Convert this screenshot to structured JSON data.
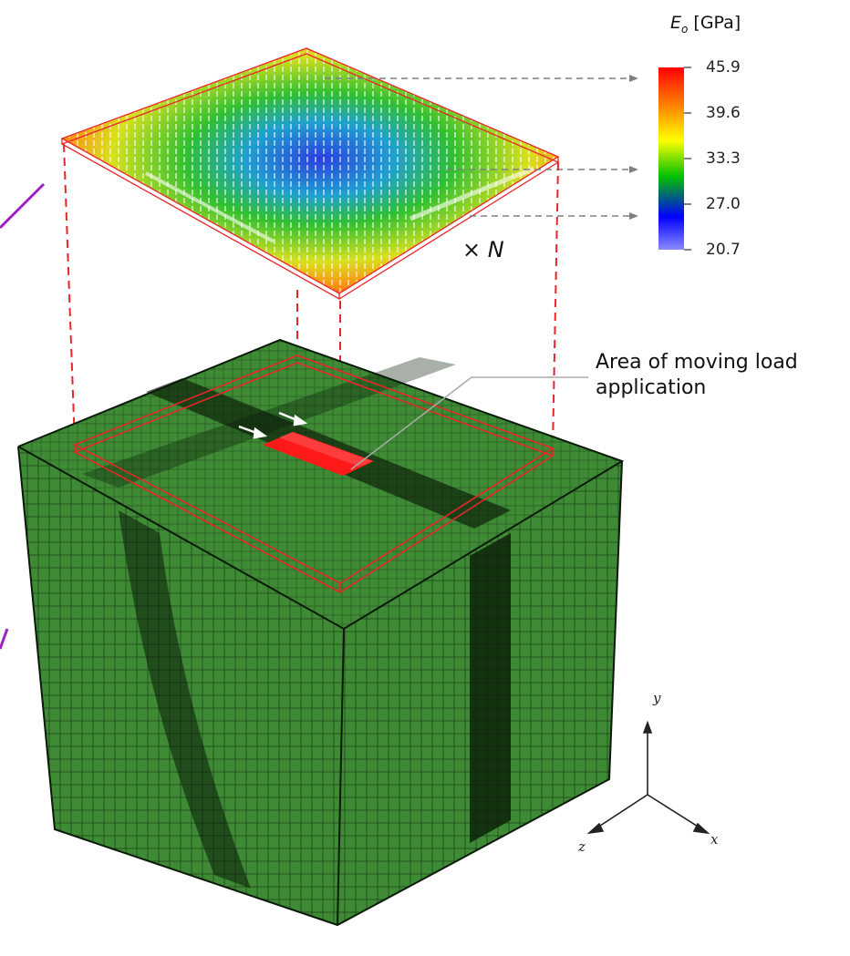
{
  "colorbar": {
    "symbol": "E",
    "subscript": "o",
    "unit": "[GPa]",
    "ticks": [
      "45.9",
      "39.6",
      "33.3",
      "27.0",
      "20.7"
    ],
    "colors": [
      "#ff0000",
      "#ff8c00",
      "#ffff00",
      "#00c800",
      "#0000ff",
      "#8080ff"
    ]
  },
  "annotation": {
    "line1": "Area of moving load",
    "line2": "application"
  },
  "multiplier": {
    "symbol": "×",
    "var": "N"
  },
  "axes": {
    "x": "x",
    "y": "y",
    "z": "z"
  },
  "colors": {
    "mesh_green": "#3e8a35",
    "mesh_dark": "#0a1a08",
    "outline_red": "#e8262a",
    "load_red": "#ff1a1a",
    "arrow_gray": "#808080",
    "purple": "#a020c0"
  }
}
